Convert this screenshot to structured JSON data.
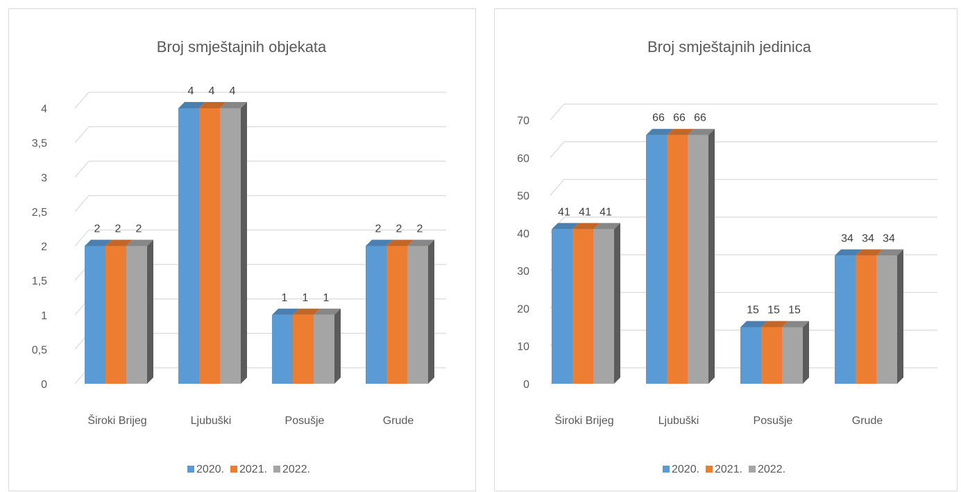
{
  "chart_data": [
    {
      "type": "bar",
      "title": "Broj smještajnih objekata",
      "categories": [
        "Široki Brijeg",
        "Ljubuški",
        "Posušje",
        "Grude"
      ],
      "series": [
        {
          "name": "2020.",
          "color": "#5B9BD5",
          "values": [
            2,
            4,
            1,
            2
          ]
        },
        {
          "name": "2021.",
          "color": "#ED7D31",
          "values": [
            2,
            4,
            1,
            2
          ]
        },
        {
          "name": "2022.",
          "color": "#A5A5A5",
          "values": [
            2,
            4,
            1,
            2
          ]
        }
      ],
      "ylim": [
        0,
        4
      ],
      "ytick_labels": [
        "0",
        "0,5",
        "1",
        "1,5",
        "2",
        "2,5",
        "3",
        "3,5",
        "4"
      ],
      "data_labels": true,
      "grid": true,
      "legend": "bottom",
      "style": "3d-clustered-column"
    },
    {
      "type": "bar",
      "title": "Broj smještajnih jedinica",
      "categories": [
        "Široki Brijeg",
        "Ljubuški",
        "Posušje",
        "Grude"
      ],
      "series": [
        {
          "name": "2020.",
          "color": "#5B9BD5",
          "values": [
            41,
            66,
            15,
            34
          ]
        },
        {
          "name": "2021.",
          "color": "#ED7D31",
          "values": [
            41,
            66,
            15,
            34
          ]
        },
        {
          "name": "2022.",
          "color": "#A5A5A5",
          "values": [
            41,
            66,
            15,
            34
          ]
        }
      ],
      "ylim": [
        0,
        70
      ],
      "ytick_labels": [
        "0",
        "10",
        "20",
        "30",
        "40",
        "50",
        "60",
        "70"
      ],
      "data_labels": true,
      "grid": true,
      "legend": "bottom",
      "style": "3d-clustered-column"
    }
  ]
}
